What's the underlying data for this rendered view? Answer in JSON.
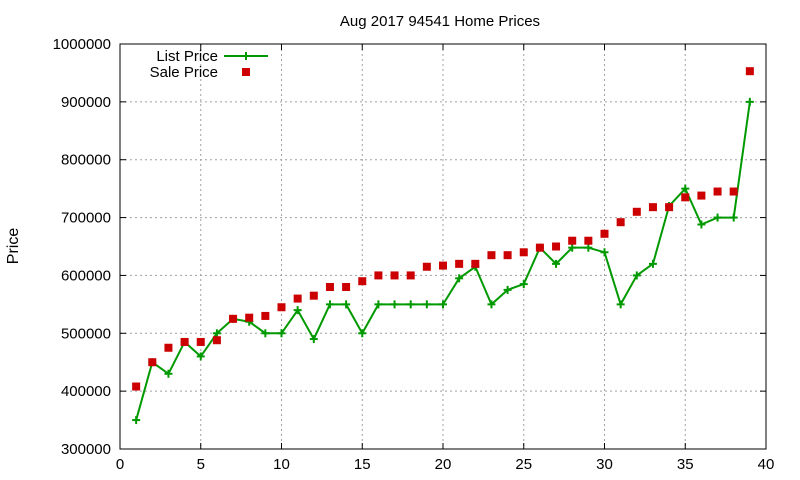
{
  "chart_data": {
    "type": "line",
    "title": "Aug 2017 94541 Home Prices",
    "xlabel": "",
    "ylabel": "Price",
    "xlim": [
      0,
      40
    ],
    "ylim": [
      300000,
      1000000
    ],
    "x_ticks": [
      0,
      5,
      10,
      15,
      20,
      25,
      30,
      35,
      40
    ],
    "y_ticks": [
      300000,
      400000,
      500000,
      600000,
      700000,
      800000,
      900000,
      1000000
    ],
    "grid": true,
    "legend_position": "top-left",
    "x": [
      1,
      2,
      3,
      4,
      5,
      6,
      7,
      8,
      9,
      10,
      11,
      12,
      13,
      14,
      15,
      16,
      17,
      18,
      19,
      20,
      21,
      22,
      23,
      24,
      25,
      26,
      27,
      28,
      29,
      30,
      31,
      32,
      33,
      34,
      35,
      36,
      37,
      38,
      39
    ],
    "series": [
      {
        "name": "List Price",
        "style": "linespoints",
        "marker": "plus",
        "color": "#009900",
        "values": [
          350000,
          450000,
          430000,
          485000,
          460000,
          500000,
          525000,
          520000,
          500000,
          500000,
          540000,
          490000,
          550000,
          550000,
          500000,
          550000,
          550000,
          550000,
          550000,
          550000,
          595000,
          615000,
          550000,
          575000,
          585000,
          648000,
          620000,
          648000,
          648000,
          640000,
          550000,
          600000,
          620000,
          720000,
          750000,
          688000,
          700000,
          700000,
          900000
        ]
      },
      {
        "name": "Sale Price",
        "style": "points",
        "marker": "square",
        "color": "#cc0000",
        "values": [
          408000,
          450000,
          475000,
          485000,
          485000,
          488000,
          525000,
          527000,
          530000,
          545000,
          560000,
          565000,
          580000,
          580000,
          590000,
          600000,
          600000,
          600000,
          615000,
          617000,
          620000,
          620000,
          635000,
          635000,
          640000,
          648000,
          650000,
          660000,
          660000,
          672000,
          692000,
          710000,
          718000,
          718000,
          735000,
          738000,
          745000,
          745000,
          953000
        ]
      }
    ]
  }
}
